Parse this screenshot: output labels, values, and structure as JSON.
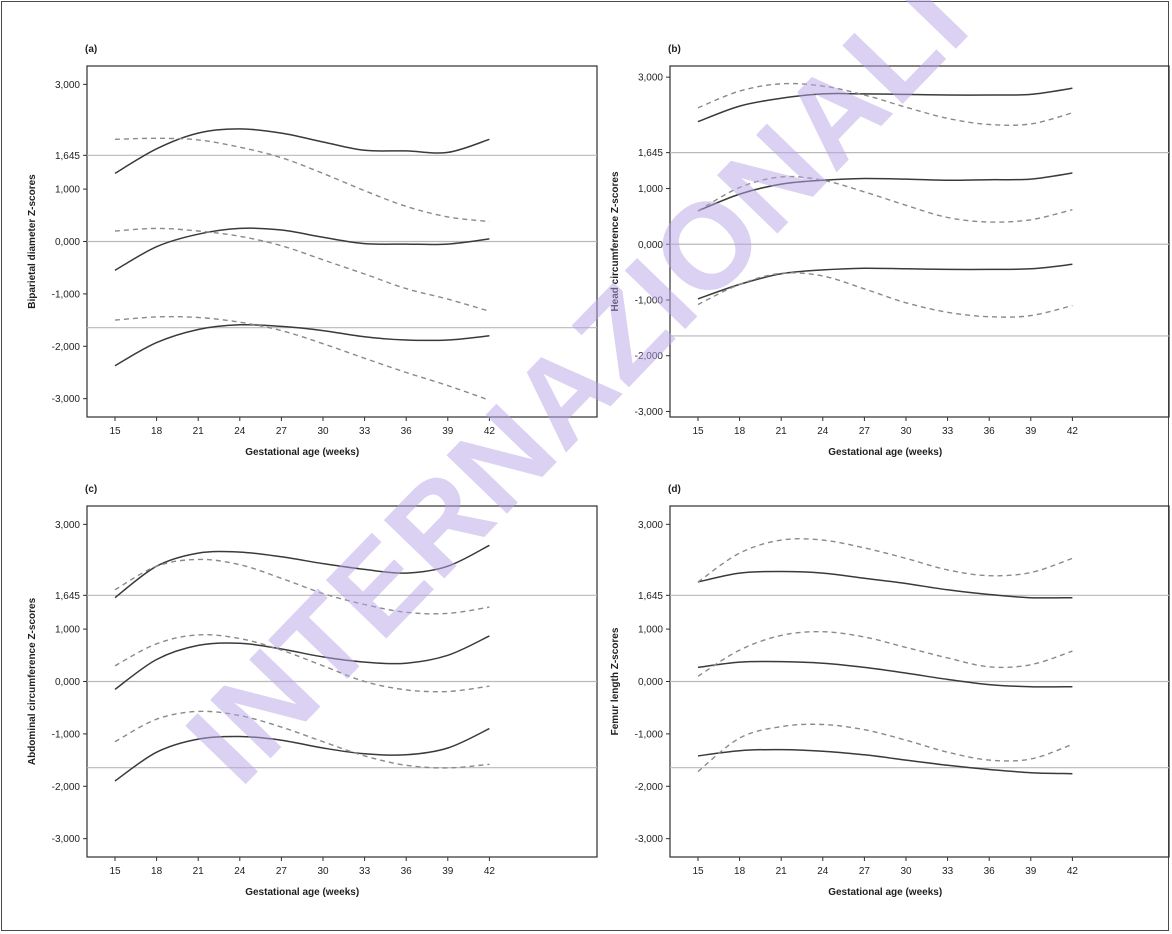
{
  "watermark": "INTERNAZIONALI",
  "chart_data": [
    {
      "type": "line",
      "panel_label": "(a)",
      "xlabel": "Gestational age (weeks)",
      "ylabel": "Biparietal diameter Z-scores",
      "x_ticks": [
        15,
        18,
        21,
        24,
        27,
        30,
        33,
        36,
        39,
        42
      ],
      "y_ticks": [
        "3,000",
        "1,645",
        "1,000",
        "0,000",
        "-1,000",
        "-2,000",
        "-3,000"
      ],
      "y_tick_values": [
        3,
        1.645,
        1,
        0,
        -1,
        -2,
        -3
      ],
      "ylim": [
        -3.35,
        3.35
      ],
      "reference_lines": [
        1.645,
        0,
        -1.645
      ],
      "series": [
        {
          "style": "solid",
          "x": [
            15,
            18,
            21,
            24,
            27,
            30,
            33,
            36,
            39,
            42
          ],
          "values": [
            1.3,
            1.77,
            2.07,
            2.15,
            2.07,
            1.9,
            1.74,
            1.73,
            1.7,
            1.95
          ]
        },
        {
          "style": "dashed",
          "x": [
            15,
            18,
            21,
            24,
            27,
            30,
            33,
            36,
            39,
            42
          ],
          "values": [
            1.95,
            1.97,
            1.94,
            1.8,
            1.6,
            1.3,
            0.97,
            0.67,
            0.47,
            0.38
          ]
        },
        {
          "style": "solid",
          "x": [
            15,
            18,
            21,
            24,
            27,
            30,
            33,
            36,
            39,
            42
          ],
          "values": [
            -0.55,
            -0.1,
            0.14,
            0.25,
            0.22,
            0.08,
            -0.04,
            -0.05,
            -0.05,
            0.05
          ]
        },
        {
          "style": "dashed",
          "x": [
            15,
            18,
            21,
            24,
            27,
            30,
            33,
            36,
            39,
            42
          ],
          "values": [
            0.2,
            0.25,
            0.2,
            0.1,
            -0.08,
            -0.35,
            -0.62,
            -0.9,
            -1.1,
            -1.33
          ]
        },
        {
          "style": "solid",
          "x": [
            15,
            18,
            21,
            24,
            27,
            30,
            33,
            36,
            39,
            42
          ],
          "values": [
            -2.37,
            -1.93,
            -1.68,
            -1.59,
            -1.62,
            -1.7,
            -1.82,
            -1.88,
            -1.88,
            -1.8
          ]
        },
        {
          "style": "dashed",
          "x": [
            15,
            18,
            21,
            24,
            27,
            30,
            33,
            36,
            39,
            42
          ],
          "values": [
            -1.5,
            -1.44,
            -1.45,
            -1.54,
            -1.7,
            -1.95,
            -2.23,
            -2.5,
            -2.75,
            -3.03
          ]
        }
      ]
    },
    {
      "type": "line",
      "panel_label": "(b)",
      "xlabel": "Gestational age (weeks)",
      "ylabel": "Head circumference Z-scores",
      "x_ticks": [
        15,
        18,
        21,
        24,
        27,
        30,
        33,
        36,
        39,
        42
      ],
      "y_ticks": [
        "3,000",
        "1,645",
        "1,000",
        "0,000",
        "-1,000",
        "-2,000",
        "-3,000"
      ],
      "y_tick_values": [
        3,
        1.645,
        1,
        0,
        -1,
        -2,
        -3
      ],
      "ylim": [
        -3.1,
        3.2
      ],
      "reference_lines": [
        1.645,
        0,
        -1.645
      ],
      "series": [
        {
          "style": "solid",
          "x": [
            15,
            18,
            21,
            24,
            27,
            30,
            33,
            36,
            39,
            42
          ],
          "values": [
            2.2,
            2.48,
            2.62,
            2.7,
            2.7,
            2.69,
            2.68,
            2.68,
            2.69,
            2.8
          ]
        },
        {
          "style": "dashed",
          "x": [
            15,
            18,
            21,
            24,
            27,
            30,
            33,
            36,
            39,
            42
          ],
          "values": [
            2.45,
            2.75,
            2.88,
            2.84,
            2.68,
            2.46,
            2.26,
            2.15,
            2.16,
            2.36
          ]
        },
        {
          "style": "solid",
          "x": [
            15,
            18,
            21,
            24,
            27,
            30,
            33,
            36,
            39,
            42
          ],
          "values": [
            0.6,
            0.9,
            1.08,
            1.15,
            1.18,
            1.17,
            1.15,
            1.16,
            1.17,
            1.28
          ]
        },
        {
          "style": "dashed",
          "x": [
            15,
            18,
            21,
            24,
            27,
            30,
            33,
            36,
            39,
            42
          ],
          "values": [
            0.6,
            1.02,
            1.21,
            1.15,
            0.94,
            0.7,
            0.48,
            0.4,
            0.44,
            0.62
          ]
        },
        {
          "style": "solid",
          "x": [
            15,
            18,
            21,
            24,
            27,
            30,
            33,
            36,
            39,
            42
          ],
          "values": [
            -0.98,
            -0.72,
            -0.53,
            -0.46,
            -0.43,
            -0.44,
            -0.45,
            -0.45,
            -0.44,
            -0.36
          ]
        },
        {
          "style": "dashed",
          "x": [
            15,
            18,
            21,
            24,
            27,
            30,
            33,
            36,
            39,
            42
          ],
          "values": [
            -1.08,
            -0.72,
            -0.52,
            -0.57,
            -0.8,
            -1.05,
            -1.22,
            -1.3,
            -1.28,
            -1.1
          ]
        }
      ]
    },
    {
      "type": "line",
      "panel_label": "(c)",
      "xlabel": "Gestational age (weeks)",
      "ylabel": "Abdominal circumference Z-scores",
      "x_ticks": [
        15,
        18,
        21,
        24,
        27,
        30,
        33,
        36,
        39,
        42
      ],
      "y_ticks": [
        "3,000",
        "1,645",
        "1,000",
        "0,000",
        "-1,000",
        "-2,000",
        "-3,000"
      ],
      "y_tick_values": [
        3,
        1.645,
        1,
        0,
        -1,
        -2,
        -3
      ],
      "ylim": [
        -3.35,
        3.35
      ],
      "reference_lines": [
        1.645,
        0,
        -1.645
      ],
      "series": [
        {
          "style": "solid",
          "x": [
            15,
            18,
            21,
            24,
            27,
            30,
            33,
            36,
            39,
            42
          ],
          "values": [
            1.6,
            2.2,
            2.45,
            2.47,
            2.38,
            2.25,
            2.14,
            2.07,
            2.2,
            2.6
          ]
        },
        {
          "style": "dashed",
          "x": [
            15,
            18,
            21,
            24,
            27,
            30,
            33,
            36,
            39,
            42
          ],
          "values": [
            1.75,
            2.2,
            2.33,
            2.23,
            1.97,
            1.68,
            1.47,
            1.32,
            1.3,
            1.42
          ]
        },
        {
          "style": "solid",
          "x": [
            15,
            18,
            21,
            24,
            27,
            30,
            33,
            36,
            39,
            42
          ],
          "values": [
            -0.15,
            0.42,
            0.69,
            0.73,
            0.62,
            0.47,
            0.37,
            0.35,
            0.5,
            0.87
          ]
        },
        {
          "style": "dashed",
          "x": [
            15,
            18,
            21,
            24,
            27,
            30,
            33,
            36,
            39,
            42
          ],
          "values": [
            0.3,
            0.72,
            0.89,
            0.82,
            0.6,
            0.3,
            0.0,
            -0.16,
            -0.19,
            -0.09
          ]
        },
        {
          "style": "solid",
          "x": [
            15,
            18,
            21,
            24,
            27,
            30,
            33,
            36,
            39,
            42
          ],
          "values": [
            -1.9,
            -1.35,
            -1.1,
            -1.05,
            -1.12,
            -1.27,
            -1.38,
            -1.4,
            -1.27,
            -0.9
          ]
        },
        {
          "style": "dashed",
          "x": [
            15,
            18,
            21,
            24,
            27,
            30,
            33,
            36,
            39,
            42
          ],
          "values": [
            -1.15,
            -0.72,
            -0.57,
            -0.65,
            -0.87,
            -1.15,
            -1.42,
            -1.6,
            -1.65,
            -1.58
          ]
        }
      ]
    },
    {
      "type": "line",
      "panel_label": "(d)",
      "xlabel": "Gestational age (weeks)",
      "ylabel": "Femur length Z-scores",
      "x_ticks": [
        15,
        18,
        21,
        24,
        27,
        30,
        33,
        36,
        39,
        42
      ],
      "y_ticks": [
        "3,000",
        "1,645",
        "1,000",
        "0,000",
        "-1,000",
        "-2,000",
        "-3,000"
      ],
      "y_tick_values": [
        3,
        1.645,
        1,
        0,
        -1,
        -2,
        -3
      ],
      "ylim": [
        -3.35,
        3.35
      ],
      "reference_lines": [
        1.645,
        0,
        -1.645
      ],
      "series": [
        {
          "style": "solid",
          "x": [
            15,
            18,
            21,
            24,
            27,
            30,
            33,
            36,
            39,
            42
          ],
          "values": [
            1.9,
            2.07,
            2.1,
            2.07,
            1.97,
            1.87,
            1.75,
            1.66,
            1.6,
            1.6
          ]
        },
        {
          "style": "dashed",
          "x": [
            15,
            18,
            21,
            24,
            27,
            30,
            33,
            36,
            39,
            42
          ],
          "values": [
            1.9,
            2.45,
            2.7,
            2.7,
            2.55,
            2.35,
            2.13,
            2.02,
            2.08,
            2.35
          ]
        },
        {
          "style": "solid",
          "x": [
            15,
            18,
            21,
            24,
            27,
            30,
            33,
            36,
            39,
            42
          ],
          "values": [
            0.27,
            0.37,
            0.38,
            0.35,
            0.27,
            0.16,
            0.04,
            -0.06,
            -0.1,
            -0.1
          ]
        },
        {
          "style": "dashed",
          "x": [
            15,
            18,
            21,
            24,
            27,
            30,
            33,
            36,
            39,
            42
          ],
          "values": [
            0.1,
            0.6,
            0.88,
            0.95,
            0.85,
            0.65,
            0.45,
            0.28,
            0.32,
            0.58
          ]
        },
        {
          "style": "solid",
          "x": [
            15,
            18,
            21,
            24,
            27,
            30,
            33,
            36,
            39,
            42
          ],
          "values": [
            -1.42,
            -1.32,
            -1.3,
            -1.33,
            -1.4,
            -1.5,
            -1.6,
            -1.68,
            -1.74,
            -1.76
          ]
        },
        {
          "style": "dashed",
          "x": [
            15,
            18,
            21,
            24,
            27,
            30,
            33,
            36,
            39,
            42
          ],
          "values": [
            -1.72,
            -1.08,
            -0.86,
            -0.82,
            -0.92,
            -1.12,
            -1.35,
            -1.5,
            -1.48,
            -1.2
          ]
        }
      ]
    }
  ]
}
